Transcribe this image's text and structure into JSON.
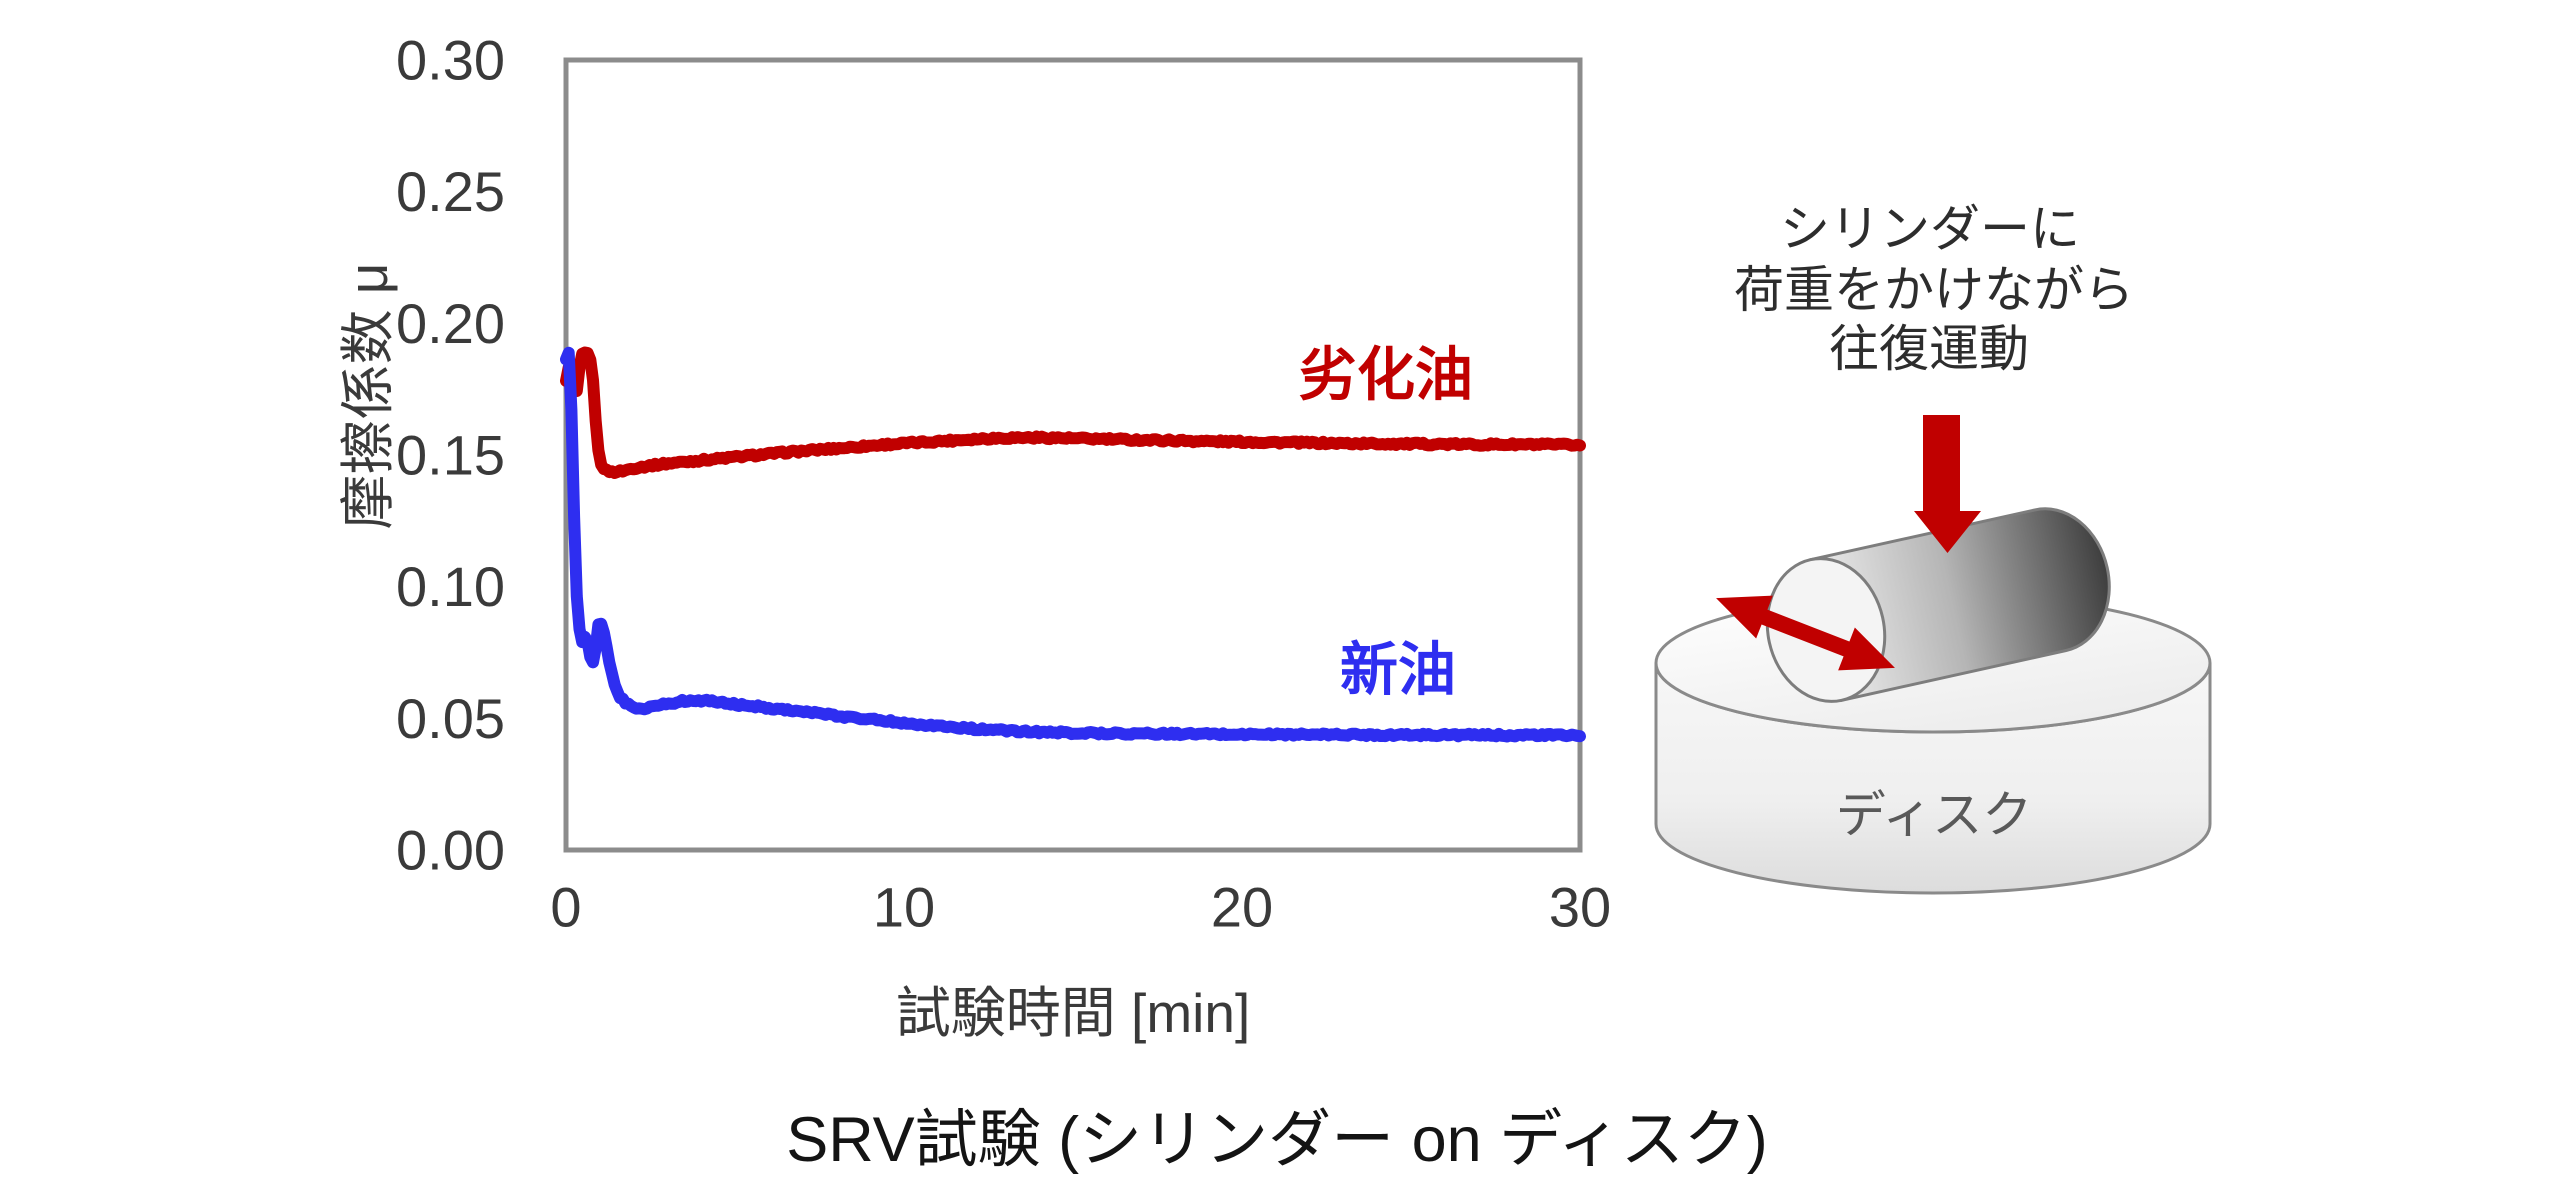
{
  "caption": "SRV試験 (シリンダー on ディスク)",
  "chart_data": {
    "type": "line",
    "xlabel": "試験時間 [min]",
    "ylabel": "摩擦係数 μ",
    "xlim": [
      0,
      30
    ],
    "ylim": [
      0.0,
      0.3
    ],
    "x_ticks": [
      "0",
      "10",
      "20",
      "30"
    ],
    "y_ticks": [
      "0.00",
      "0.05",
      "0.10",
      "0.15",
      "0.20",
      "0.25",
      "0.30"
    ],
    "grid": false,
    "legend_position": "inline-labels",
    "series": [
      {
        "name": "劣化油",
        "color": "#c00000",
        "points": [
          [
            0.0,
            0.178
          ],
          [
            0.08,
            0.183
          ],
          [
            0.15,
            0.18
          ],
          [
            0.25,
            0.173
          ],
          [
            0.33,
            0.174
          ],
          [
            0.4,
            0.183
          ],
          [
            0.48,
            0.188
          ],
          [
            0.6,
            0.189
          ],
          [
            0.7,
            0.188
          ],
          [
            0.78,
            0.182
          ],
          [
            0.85,
            0.168
          ],
          [
            0.95,
            0.152
          ],
          [
            1.05,
            0.146
          ],
          [
            1.2,
            0.144
          ],
          [
            1.4,
            0.1435
          ],
          [
            1.7,
            0.144
          ],
          [
            2.0,
            0.145
          ],
          [
            2.5,
            0.146
          ],
          [
            3.0,
            0.1468
          ],
          [
            3.5,
            0.1474
          ],
          [
            4.0,
            0.148
          ],
          [
            4.5,
            0.1486
          ],
          [
            5.0,
            0.1492
          ],
          [
            5.5,
            0.1498
          ],
          [
            6.0,
            0.1504
          ],
          [
            6.5,
            0.151
          ],
          [
            7.0,
            0.1515
          ],
          [
            7.5,
            0.152
          ],
          [
            8.0,
            0.1525
          ],
          [
            8.5,
            0.153
          ],
          [
            9.0,
            0.1535
          ],
          [
            9.5,
            0.154
          ],
          [
            10.0,
            0.1544
          ],
          [
            10.5,
            0.1548
          ],
          [
            11.0,
            0.1552
          ],
          [
            11.5,
            0.1556
          ],
          [
            12.0,
            0.156
          ],
          [
            12.5,
            0.1563
          ],
          [
            13.0,
            0.1565
          ],
          [
            13.5,
            0.1566
          ],
          [
            14.0,
            0.1566
          ],
          [
            14.5,
            0.1565
          ],
          [
            15.0,
            0.1563
          ],
          [
            16.0,
            0.156
          ],
          [
            17.0,
            0.1557
          ],
          [
            18.0,
            0.1555
          ],
          [
            19.0,
            0.1552
          ],
          [
            20.0,
            0.155
          ],
          [
            21.0,
            0.1548
          ],
          [
            22.0,
            0.1546
          ],
          [
            23.0,
            0.1544
          ],
          [
            24.0,
            0.1543
          ],
          [
            25.0,
            0.1542
          ],
          [
            26.0,
            0.1541
          ],
          [
            27.0,
            0.154
          ],
          [
            28.0,
            0.154
          ],
          [
            29.0,
            0.1539
          ],
          [
            30.0,
            0.1538
          ]
        ]
      },
      {
        "name": "新油",
        "color": "#2e2ef0",
        "points": [
          [
            0.0,
            0.186
          ],
          [
            0.05,
            0.19
          ],
          [
            0.1,
            0.188
          ],
          [
            0.15,
            0.172
          ],
          [
            0.22,
            0.135
          ],
          [
            0.3,
            0.1
          ],
          [
            0.38,
            0.085
          ],
          [
            0.45,
            0.08
          ],
          [
            0.52,
            0.078
          ],
          [
            0.58,
            0.082
          ],
          [
            0.65,
            0.079
          ],
          [
            0.72,
            0.073
          ],
          [
            0.8,
            0.071
          ],
          [
            0.88,
            0.077
          ],
          [
            0.95,
            0.086
          ],
          [
            1.05,
            0.086
          ],
          [
            1.15,
            0.081
          ],
          [
            1.3,
            0.07
          ],
          [
            1.45,
            0.062
          ],
          [
            1.6,
            0.058
          ],
          [
            1.8,
            0.0555
          ],
          [
            2.0,
            0.054
          ],
          [
            2.3,
            0.0538
          ],
          [
            2.6,
            0.0546
          ],
          [
            3.0,
            0.0556
          ],
          [
            3.5,
            0.0566
          ],
          [
            4.0,
            0.0568
          ],
          [
            4.5,
            0.0562
          ],
          [
            5.0,
            0.0553
          ],
          [
            5.5,
            0.0547
          ],
          [
            6.0,
            0.054
          ],
          [
            6.5,
            0.0533
          ],
          [
            7.0,
            0.0526
          ],
          [
            7.5,
            0.0518
          ],
          [
            8.0,
            0.051
          ],
          [
            8.5,
            0.0503
          ],
          [
            9.0,
            0.0497
          ],
          [
            9.5,
            0.049
          ],
          [
            10.0,
            0.0483
          ],
          [
            10.5,
            0.0477
          ],
          [
            11.0,
            0.0471
          ],
          [
            11.5,
            0.0466
          ],
          [
            12.0,
            0.0461
          ],
          [
            12.5,
            0.0457
          ],
          [
            13.0,
            0.0453
          ],
          [
            13.5,
            0.045
          ],
          [
            14.0,
            0.0448
          ],
          [
            14.5,
            0.0446
          ],
          [
            15.0,
            0.0445
          ],
          [
            16.0,
            0.0443
          ],
          [
            17.0,
            0.0442
          ],
          [
            18.0,
            0.0441
          ],
          [
            19.0,
            0.044
          ],
          [
            20.0,
            0.0439
          ],
          [
            21.0,
            0.0439
          ],
          [
            22.0,
            0.0438
          ],
          [
            23.0,
            0.0438
          ],
          [
            24.0,
            0.0437
          ],
          [
            25.0,
            0.0437
          ],
          [
            26.0,
            0.0437
          ],
          [
            27.0,
            0.0436
          ],
          [
            28.0,
            0.0436
          ],
          [
            29.0,
            0.0436
          ],
          [
            30.0,
            0.0435
          ]
        ]
      }
    ]
  },
  "diagram": {
    "note_lines": [
      "シリンダーに",
      "荷重をかけながら",
      "往復運動"
    ],
    "disk_label": "ディスク",
    "arrow_color": "#c00000"
  }
}
